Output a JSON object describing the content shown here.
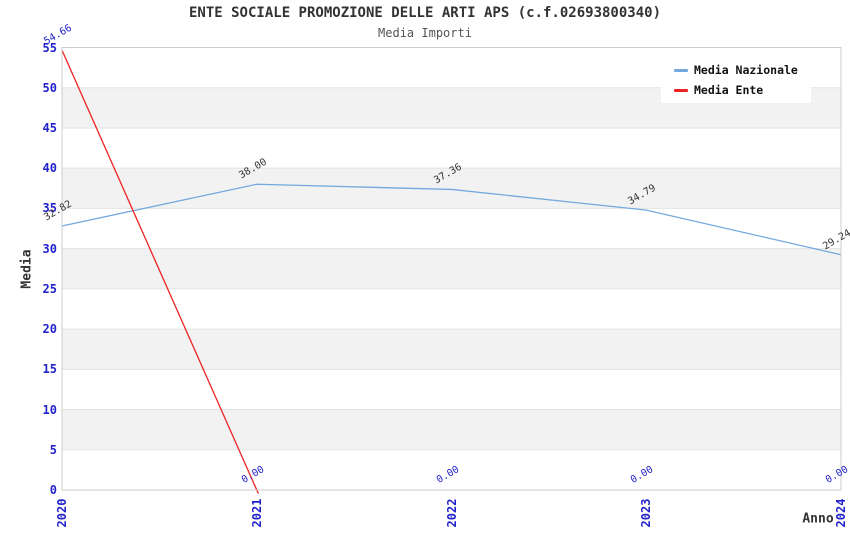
{
  "chart_data": {
    "type": "line",
    "title": "ENTE SOCIALE PROMOZIONE DELLE ARTI APS (c.f.02693800340)",
    "subtitle": "Media Importi",
    "xlabel": "Anno",
    "ylabel": "Media",
    "x": [
      2020,
      2021,
      2022,
      2023,
      2024
    ],
    "ylim": [
      0,
      55
    ],
    "ytick_step": 5,
    "grid": "horizontal gridlines every 5 units with alternating light-gray shaded bands",
    "legend_position": "top-right",
    "series": [
      {
        "name": "Media Nazionale",
        "color": "#74a9df",
        "label_color": "#333333",
        "values": [
          32.82,
          38.0,
          37.36,
          34.79,
          29.24
        ],
        "point_labels": [
          "32.82",
          "38.00",
          "37.36",
          "34.79",
          "29.24"
        ]
      },
      {
        "name": "Media Ente",
        "color": "#ee2222",
        "label_color": "#2222cc",
        "values": [
          54.66,
          0.0,
          0.0,
          0.0,
          0.0
        ],
        "point_labels": [
          "54.66",
          "0.00",
          "0.00",
          "0.00",
          "0.00"
        ],
        "line_ends_at_first_zero": true
      }
    ],
    "colors": {
      "tick_label": "#2222cc",
      "band": "#f2f2f2",
      "gridline": "#e3e3e3",
      "spine": "#cccccc",
      "title": "#333333",
      "subtitle": "#555555",
      "axis_label": "#333333",
      "legend_text": "#111111",
      "plot_background": "#ffffff"
    }
  }
}
